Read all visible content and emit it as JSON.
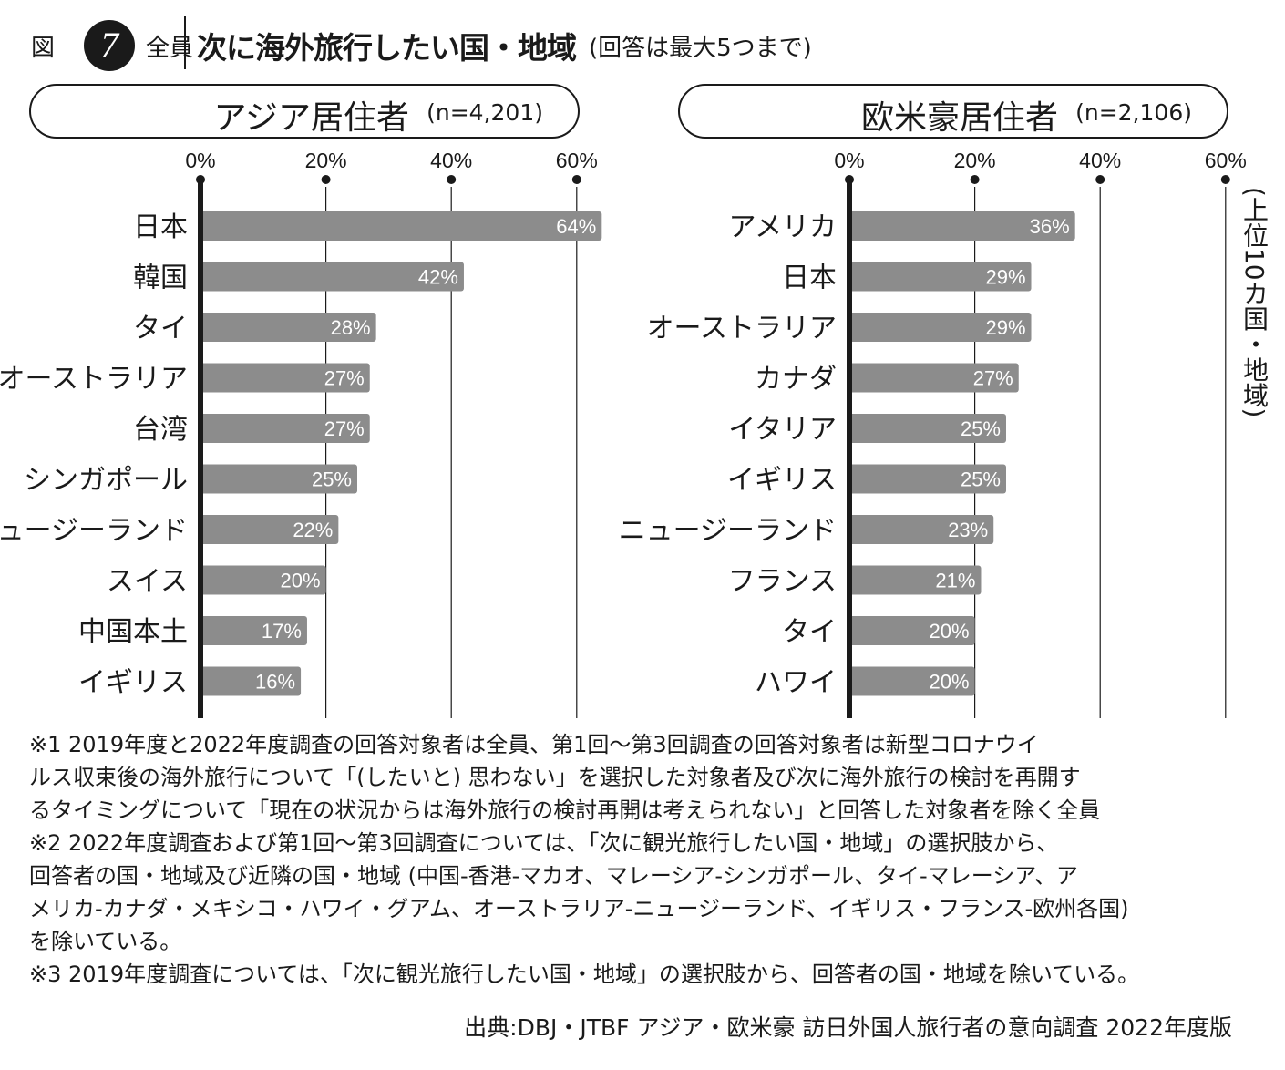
{
  "header": {
    "figure_label": "図",
    "figure_number": "7",
    "scope": "全員",
    "title": "次に海外旅行したい国・地域",
    "note": "(回答は最大5つまで)"
  },
  "side_label": "(上位10カ国・地域)",
  "colors": {
    "bar": "#8c8c8c",
    "axis": "#1a1a1a",
    "grid": "#1a1a1a",
    "text": "#1a1a1a"
  },
  "chart_data": [
    {
      "type": "bar",
      "orientation": "horizontal",
      "title": "アジア居住者",
      "sample": "(n=4,201)",
      "ticks": [
        "0%",
        "20%",
        "40%",
        "60%"
      ],
      "xlim": [
        0,
        60
      ],
      "grid": true,
      "categories": [
        "日本",
        "韓国",
        "タイ",
        "オーストラリア",
        "台湾",
        "シンガポール",
        "ニュージーランド",
        "スイス",
        "中国本土",
        "イギリス"
      ],
      "values": [
        64,
        42,
        28,
        27,
        27,
        25,
        22,
        20,
        17,
        16
      ],
      "value_labels": [
        "64%",
        "42%",
        "28%",
        "27%",
        "27%",
        "25%",
        "22%",
        "20%",
        "17%",
        "16%"
      ]
    },
    {
      "type": "bar",
      "orientation": "horizontal",
      "title": "欧米豪居住者",
      "sample": "(n=2,106)",
      "ticks": [
        "0%",
        "20%",
        "40%",
        "60%"
      ],
      "xlim": [
        0,
        60
      ],
      "grid": true,
      "categories": [
        "アメリカ",
        "日本",
        "オーストラリア",
        "カナダ",
        "イタリア",
        "イギリス",
        "ニュージーランド",
        "フランス",
        "タイ",
        "ハワイ"
      ],
      "values": [
        36,
        29,
        29,
        27,
        25,
        25,
        23,
        21,
        20,
        20
      ],
      "value_labels": [
        "36%",
        "29%",
        "29%",
        "27%",
        "25%",
        "25%",
        "23%",
        "21%",
        "20%",
        "20%"
      ]
    }
  ],
  "notes": [
    "※1 2019年度と2022年度調査の回答対象者は全員、第1回〜第3回調査の回答対象者は新型コロナウイ",
    "ルス収束後の海外旅行について「(したいと) 思わない」を選択した対象者及び次に海外旅行の検討を再開す",
    "るタイミングについて「現在の状況からは海外旅行の検討再開は考えられない」と回答した対象者を除く全員",
    "※2 2022年度調査および第1回〜第3回調査については、「次に観光旅行したい国・地域」の選択肢から、",
    "回答者の国・地域及び近隣の国・地域 (中国-香港-マカオ、マレーシア-シンガポール、タイ-マレーシア、ア",
    "メリカ-カナダ・メキシコ・ハワイ・グアム、オーストラリア-ニュージーランド、イギリス・フランス-欧州各国)",
    "を除いている。",
    "※3 2019年度調査については、「次に観光旅行したい国・地域」の選択肢から、回答者の国・地域を除いている。"
  ],
  "source": "出典:DBJ・JTBF アジア・欧米豪 訪日外国人旅行者の意向調査 2022年度版"
}
